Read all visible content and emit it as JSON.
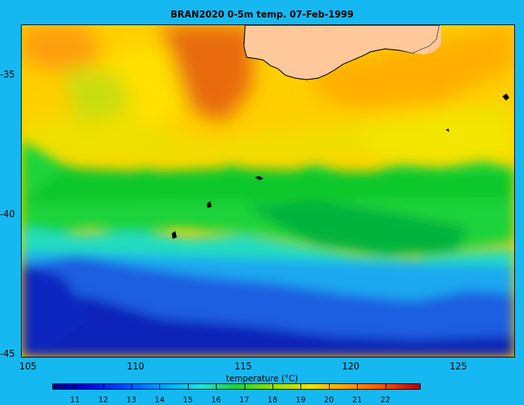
{
  "title": "BRAN2020 0-5m temp. 07-Feb-1999",
  "map": {
    "x_ticks": [
      "105",
      "110",
      "115",
      "120",
      "125"
    ],
    "y_ticks": [
      "-35",
      "-40",
      "-45"
    ],
    "colorbar_label": "temperature (°C)",
    "colorbar_ticks": [
      "11",
      "12",
      "13",
      "14",
      "15",
      "16",
      "17",
      "18",
      "19",
      "20",
      "21",
      "22"
    ],
    "colorbar_range": [
      10.2,
      23.2
    ],
    "land_color": "#ffc89a",
    "background_color": "#15b8f0"
  }
}
